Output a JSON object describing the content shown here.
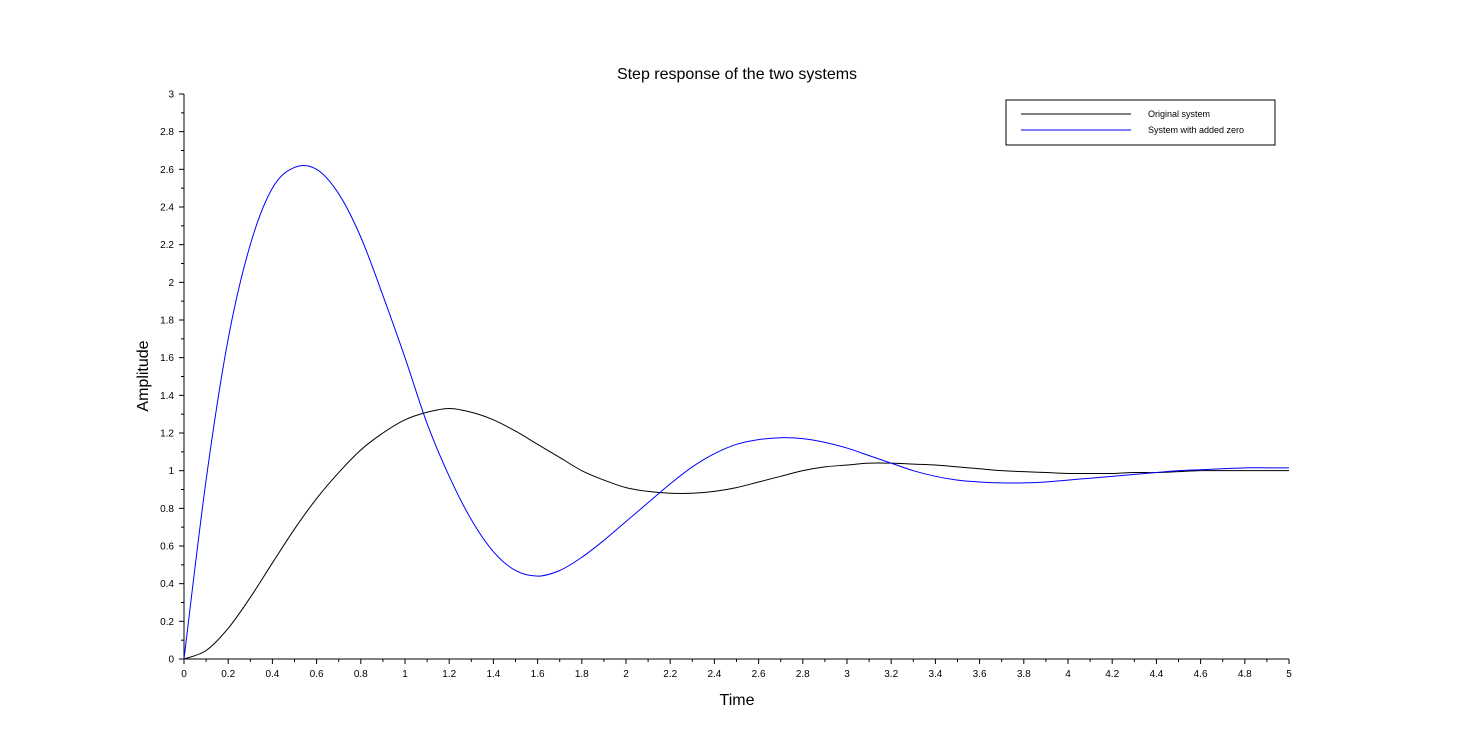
{
  "chart_data": {
    "type": "line",
    "title": "Step response of the two systems",
    "xlabel": "Time",
    "ylabel": "Amplitude",
    "xlim": [
      0,
      5
    ],
    "ylim": [
      0,
      3
    ],
    "grid": false,
    "legend_position": "top-right",
    "x_ticks": [
      "0",
      "0.2",
      "0.4",
      "0.6",
      "0.8",
      "1",
      "1.2",
      "1.4",
      "1.6",
      "1.8",
      "2",
      "2.2",
      "2.4",
      "2.6",
      "2.8",
      "3",
      "3.2",
      "3.4",
      "3.6",
      "3.8",
      "4",
      "4.2",
      "4.4",
      "4.6",
      "4.8",
      "5"
    ],
    "y_ticks": [
      "0",
      "0.2",
      "0.4",
      "0.6",
      "0.8",
      "1",
      "1.2",
      "1.4",
      "1.6",
      "1.8",
      "2",
      "2.2",
      "2.4",
      "2.6",
      "2.8",
      "3"
    ],
    "x": [
      0,
      0.1,
      0.2,
      0.3,
      0.4,
      0.5,
      0.6,
      0.7,
      0.8,
      0.9,
      1.0,
      1.1,
      1.2,
      1.3,
      1.4,
      1.5,
      1.6,
      1.7,
      1.8,
      1.9,
      2.0,
      2.1,
      2.2,
      2.3,
      2.4,
      2.5,
      2.6,
      2.7,
      2.8,
      2.9,
      3.0,
      3.1,
      3.2,
      3.3,
      3.4,
      3.5,
      3.6,
      3.7,
      3.8,
      3.9,
      4.0,
      4.1,
      4.2,
      4.3,
      4.4,
      4.5,
      4.6,
      4.7,
      4.8,
      4.9,
      5.0
    ],
    "series": [
      {
        "name": "Original system",
        "color": "#000000",
        "values": [
          0,
          0.045,
          0.163,
          0.327,
          0.51,
          0.69,
          0.852,
          0.99,
          1.11,
          1.2,
          1.27,
          1.31,
          1.33,
          1.31,
          1.27,
          1.21,
          1.14,
          1.07,
          1.0,
          0.95,
          0.91,
          0.89,
          0.88,
          0.88,
          0.89,
          0.91,
          0.94,
          0.97,
          1.0,
          1.02,
          1.03,
          1.04,
          1.04,
          1.035,
          1.03,
          1.02,
          1.01,
          1.0,
          0.995,
          0.99,
          0.985,
          0.985,
          0.985,
          0.99,
          0.99,
          0.995,
          1.0,
          1.0,
          1.0,
          1.0,
          1.0
        ]
      },
      {
        "name": "System with added zero",
        "color": "#0000ff",
        "values": [
          0,
          0.95,
          1.7,
          2.2,
          2.5,
          2.61,
          2.6,
          2.47,
          2.24,
          1.93,
          1.6,
          1.25,
          0.97,
          0.74,
          0.57,
          0.47,
          0.44,
          0.47,
          0.54,
          0.63,
          0.73,
          0.83,
          0.93,
          1.02,
          1.09,
          1.14,
          1.165,
          1.175,
          1.17,
          1.15,
          1.12,
          1.08,
          1.04,
          1.0,
          0.97,
          0.95,
          0.94,
          0.935,
          0.935,
          0.94,
          0.95,
          0.96,
          0.97,
          0.98,
          0.99,
          1.0,
          1.005,
          1.01,
          1.015,
          1.015,
          1.015
        ]
      }
    ]
  }
}
